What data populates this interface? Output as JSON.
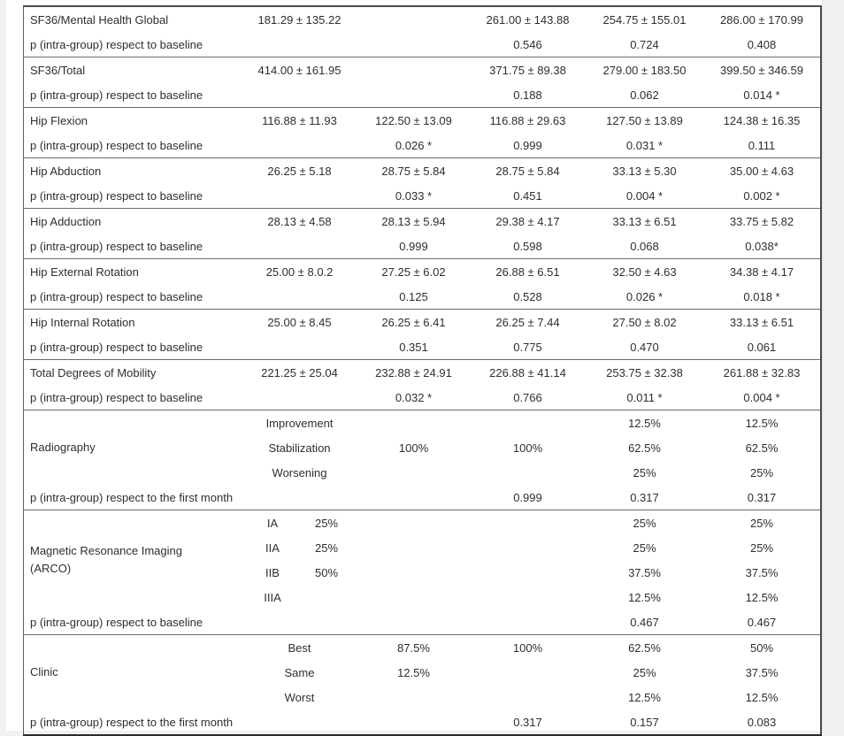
{
  "page": {
    "background": "#f1f1f1",
    "paper_color": "#ffffff",
    "border_color": "#5c5c5c",
    "text_color": "#2e2e2e"
  },
  "table": {
    "sections": [
      {
        "kind": "pair",
        "label": "SF36/Mental Health Global",
        "values": [
          "181.29 ± 135.22",
          "",
          "261.00 ± 143.88",
          "254.75 ± 155.01",
          "286.00 ± 170.99"
        ],
        "p_label": "p (intra-group) respect to baseline",
        "p_values": [
          "",
          "",
          "0.546",
          "0.724",
          "0.408"
        ]
      },
      {
        "kind": "pair",
        "label": "SF36/Total",
        "values": [
          "414.00 ± 161.95",
          "",
          "371.75 ± 89.38",
          "279.00 ± 183.50",
          "399.50 ± 346.59"
        ],
        "p_label": "p (intra-group) respect to baseline",
        "p_values": [
          "",
          "",
          "0.188",
          "0.062",
          "0.014 *"
        ]
      },
      {
        "kind": "pair",
        "label": "Hip Flexion",
        "values": [
          "116.88 ± 11.93",
          "122.50 ± 13.09",
          "116.88 ± 29.63",
          "127.50 ± 13.89",
          "124.38 ± 16.35"
        ],
        "p_label": "p (intra-group) respect to baseline",
        "p_values": [
          "",
          "0.026 *",
          "0.999",
          "0.031 *",
          "0.111"
        ]
      },
      {
        "kind": "pair",
        "label": "Hip Abduction",
        "values": [
          "26.25 ± 5.18",
          "28.75 ± 5.84",
          "28.75 ± 5.84",
          "33.13 ± 5.30",
          "35.00 ± 4.63"
        ],
        "p_label": "p (intra-group) respect to baseline",
        "p_values": [
          "",
          "0.033 *",
          "0.451",
          "0.004 *",
          "0.002 *"
        ]
      },
      {
        "kind": "pair",
        "label": "Hip Adduction",
        "values": [
          "28.13 ± 4.58",
          "28.13 ± 5.94",
          "29.38 ± 4.17",
          "33.13 ± 6.51",
          "33.75 ± 5.82"
        ],
        "p_label": "p (intra-group) respect to baseline",
        "p_values": [
          "",
          "0.999",
          "0.598",
          "0.068",
          "0.038*"
        ]
      },
      {
        "kind": "pair",
        "label": "Hip External Rotation",
        "values": [
          "25.00 ± 8.0.2",
          "27.25 ± 6.02",
          "26.88 ± 6.51",
          "32.50 ± 4.63",
          "34.38 ± 4.17"
        ],
        "p_label": "p (intra-group) respect to baseline",
        "p_values": [
          "",
          "0.125",
          "0.528",
          "0.026 *",
          "0.018 *"
        ]
      },
      {
        "kind": "pair",
        "label": "Hip Internal Rotation",
        "values": [
          "25.00 ± 8.45",
          "26.25 ± 6.41",
          "26.25 ± 7.44",
          "27.50 ± 8.02",
          "33.13 ± 6.51"
        ],
        "p_label": "p (intra-group) respect to baseline",
        "p_values": [
          "",
          "0.351",
          "0.775",
          "0.470",
          "0.061"
        ]
      },
      {
        "kind": "pair",
        "label": "Total Degrees of Mobility",
        "values": [
          "221.25 ± 25.04",
          "232.88 ± 24.91",
          "226.88 ± 41.14",
          "253.75 ± 32.38",
          "261.88 ± 32.83"
        ],
        "p_label": "p (intra-group) respect to baseline",
        "p_values": [
          "",
          "0.032 *",
          "0.766",
          "0.011 *",
          "0.004 *"
        ]
      },
      {
        "kind": "grouped",
        "label_lines": [
          "Radiography"
        ],
        "subrows": [
          {
            "sub": "Improvement",
            "values": [
              "",
              "",
              "12.5%",
              "12.5%"
            ]
          },
          {
            "sub": "Stabilization",
            "values": [
              "100%",
              "100%",
              "62.5%",
              "62.5%"
            ]
          },
          {
            "sub": "Worsening",
            "values": [
              "",
              "",
              "25%",
              "25%"
            ]
          }
        ],
        "p_label": "p (intra-group) respect to the first month",
        "p_values": [
          "",
          "",
          "0.999",
          "0.317",
          "0.317"
        ]
      },
      {
        "kind": "grouped",
        "split_sub": true,
        "label_lines": [
          "Magnetic Resonance Imaging",
          "(ARCO)"
        ],
        "subrows": [
          {
            "sub": "IA",
            "sub2": "25%",
            "values": [
              "",
              "",
              "25%",
              "25%"
            ]
          },
          {
            "sub": "IIA",
            "sub2": "25%",
            "values": [
              "",
              "",
              "25%",
              "25%"
            ]
          },
          {
            "sub": "IIB",
            "sub2": "50%",
            "values": [
              "",
              "",
              "37.5%",
              "37.5%"
            ]
          },
          {
            "sub": "IIIA",
            "sub2": "",
            "values": [
              "",
              "",
              "12.5%",
              "12.5%"
            ]
          }
        ],
        "p_label": "p (intra-group) respect to baseline",
        "p_values": [
          "",
          "",
          "",
          "0.467",
          "0.467"
        ]
      },
      {
        "kind": "grouped",
        "label_lines": [
          "Clinic"
        ],
        "subrows": [
          {
            "sub": "Best",
            "values": [
              "87.5%",
              "100%",
              "62.5%",
              "50%"
            ]
          },
          {
            "sub": "Same",
            "values": [
              "12.5%",
              "",
              "25%",
              "37.5%"
            ]
          },
          {
            "sub": "Worst",
            "values": [
              "",
              "",
              "12.5%",
              "12.5%"
            ]
          }
        ],
        "p_label": "p (intra-group) respect to the first month",
        "p_values": [
          "",
          "",
          "0.317",
          "0.157",
          "0.083"
        ]
      }
    ]
  }
}
